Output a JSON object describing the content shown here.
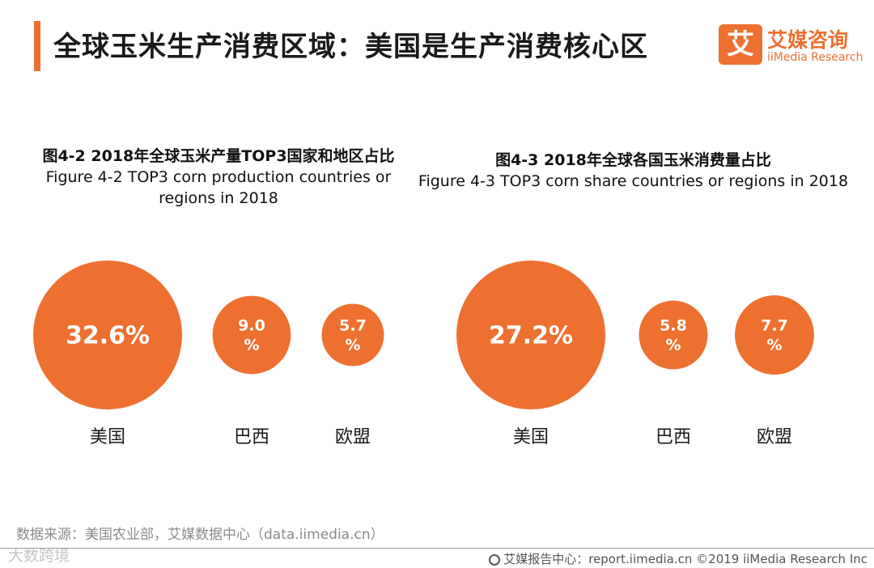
{
  "header": {
    "title": "全球玉米生产消费区域：美国是生产消费核心区",
    "accent_color": "#ed7030"
  },
  "logo": {
    "mark": "艾",
    "cn": "艾媒咨询",
    "en": "iiMedia Research"
  },
  "chart_data": [
    {
      "type": "bubble",
      "title": "图4-2 2018年全球玉米产量TOP3国家和地区占比\nFigure 4-2 TOP3 corn production countries or regions in 2018",
      "categories": [
        "美国",
        "巴西",
        "欧盟"
      ],
      "values": [
        32.6,
        9.0,
        5.7
      ],
      "value_labels": [
        "32.6%",
        "9.0\n%",
        "5.7\n%"
      ],
      "unit": "%",
      "color": "#ed7030"
    },
    {
      "type": "bubble",
      "title": "图4-3 2018年全球各国玉米消费量占比\nFigure 4-3 TOP3 corn share countries or regions in 2018",
      "categories": [
        "美国",
        "巴西",
        "欧盟"
      ],
      "values": [
        27.2,
        5.8,
        7.7
      ],
      "value_labels": [
        "27.2%",
        "5.8\n%",
        "7.7\n%"
      ],
      "unit": "%",
      "color": "#ed7030"
    }
  ],
  "source": "数据来源：美国农业部，艾媒数据中心（data.iimedia.cn）",
  "watermark": "大数跨境",
  "footer": {
    "icon": "globe-icon",
    "text": "艾媒报告中心：report.iimedia.cn  ©2019  iiMedia Research  Inc"
  }
}
